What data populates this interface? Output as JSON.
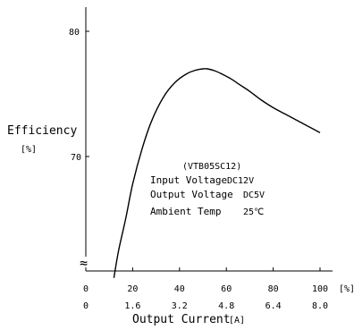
{
  "chart_data": {
    "type": "line",
    "ylabel": "Efficiency",
    "ylabel_unit": "[%]",
    "xlabel": "Output Current",
    "xlabel_unit": "[A]",
    "x_percent_unit": "[%]",
    "y_ticks": [
      {
        "value": 80,
        "label": "80"
      },
      {
        "value": 70,
        "label": "70"
      }
    ],
    "x_ticks": [
      {
        "percent": 0,
        "percent_label": "0",
        "current_label": "0"
      },
      {
        "percent": 20,
        "percent_label": "20",
        "current_label": "1.6"
      },
      {
        "percent": 40,
        "percent_label": "40",
        "current_label": "3.2"
      },
      {
        "percent": 60,
        "percent_label": "60",
        "current_label": "4.8"
      },
      {
        "percent": 80,
        "percent_label": "80",
        "current_label": "6.4"
      },
      {
        "percent": 100,
        "percent_label": "100",
        "current_label": "8.0"
      }
    ],
    "xlim": [
      0,
      100
    ],
    "ylim": [
      60,
      82
    ],
    "axis_break": "≈",
    "grid": false,
    "series": [
      {
        "color": "#000000",
        "x": [
          12,
          14,
          17,
          20,
          24,
          28,
          33,
          38,
          43,
          47,
          50,
          52,
          55,
          58,
          62,
          66,
          70,
          75,
          80,
          85,
          90,
          95,
          100
        ],
        "y": [
          60.3,
          62.5,
          65.0,
          67.8,
          70.6,
          72.8,
          74.7,
          75.9,
          76.6,
          76.9,
          77.0,
          77.0,
          76.85,
          76.6,
          76.2,
          75.7,
          75.2,
          74.5,
          73.9,
          73.4,
          72.9,
          72.4,
          71.9
        ]
      }
    ],
    "annotation": {
      "model": "(VTB05SC12)",
      "rows": [
        {
          "label": "Input Voltage",
          "value": "DC12V"
        },
        {
          "label": "Output Voltage",
          "value": "DC5V"
        },
        {
          "label": "Ambient Temp",
          "value": "25℃"
        }
      ]
    }
  }
}
